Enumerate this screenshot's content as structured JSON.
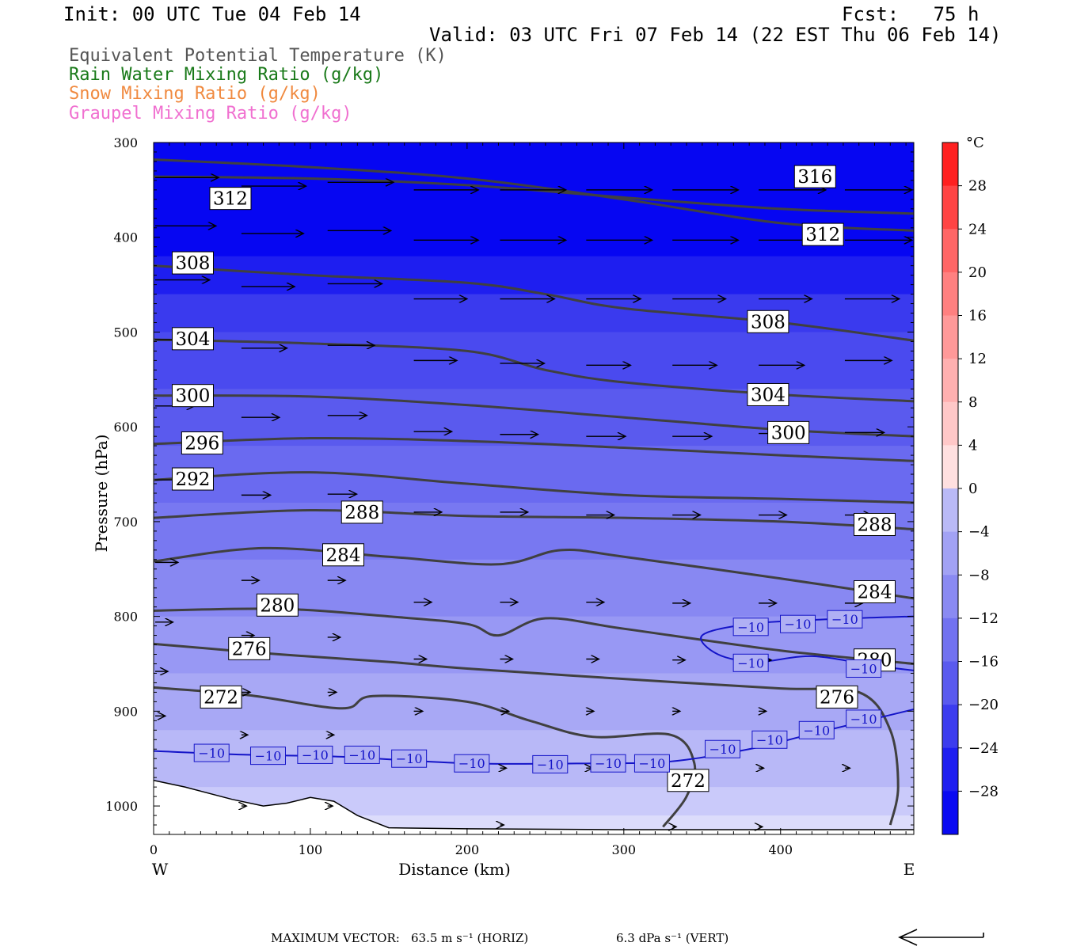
{
  "header": {
    "init": "Init: 00 UTC Tue 04 Feb 14",
    "fcst": "Fcst:   75 h",
    "valid": "Valid: 03 UTC Fri 07 Feb 14 (22 EST Thu 06 Feb 14)"
  },
  "legend": [
    {
      "label": "Equivalent Potential Temperature (K)",
      "color": "#555555"
    },
    {
      "label": "Rain Water Mixing Ratio (g/kg)",
      "color": "#1a7a1a"
    },
    {
      "label": "Snow Mixing Ratio (g/kg)",
      "color": "#f08a40"
    },
    {
      "label": "Graupel Mixing Ratio (g/kg)",
      "color": "#f070d0"
    }
  ],
  "footer": {
    "max_vector_label": "MAXIMUM VECTOR:",
    "horiz": "63.5 m s⁻¹ (HORIZ)",
    "vert": "6.3 dPa s⁻¹ (VERT)"
  },
  "chart_data": {
    "type": "heatmap",
    "xlabel": "Distance (km)",
    "ylabel": "Pressure (hPa)",
    "x_ticks": [
      0,
      100,
      200,
      300,
      400
    ],
    "y_ticks": [
      300,
      400,
      500,
      600,
      700,
      800,
      900,
      1000
    ],
    "xlim": [
      0,
      485
    ],
    "ylim": [
      1030,
      300
    ],
    "x_end_labels": {
      "left": "W",
      "right": "E"
    },
    "colorbar": {
      "unit": "°C",
      "ticks": [
        28,
        24,
        20,
        16,
        12,
        8,
        4,
        0,
        -4,
        -8,
        -12,
        -16,
        -20,
        -24,
        -28
      ],
      "range": [
        -32,
        32
      ],
      "colors_warm": [
        "#ff2020",
        "#ff4444",
        "#ff6666",
        "#ff8080",
        "#ff9999",
        "#ffb0b0",
        "#ffc8c8",
        "#ffe0e0"
      ],
      "colors_cold": [
        "#eaeafc",
        "#d2d2f8",
        "#babaf6",
        "#a2a2f4",
        "#8a8af2",
        "#7272f0",
        "#5a5aee",
        "#3c3cee",
        "#1e1ef0",
        "#0a0af2"
      ]
    },
    "theta_e_contours": [
      {
        "value": 316,
        "points": [
          [
            0,
            336
          ],
          [
            100,
            338
          ],
          [
            200,
            345
          ],
          [
            300,
            358
          ],
          [
            400,
            370
          ],
          [
            485,
            375
          ]
        ]
      },
      {
        "value": 312,
        "points": [
          [
            0,
            318
          ],
          [
            100,
            326
          ],
          [
            200,
            338
          ],
          [
            300,
            360
          ],
          [
            400,
            385
          ],
          [
            485,
            393
          ]
        ]
      },
      {
        "value": 308,
        "points": [
          [
            0,
            430
          ],
          [
            100,
            440
          ],
          [
            200,
            448
          ],
          [
            250,
            460
          ],
          [
            300,
            475
          ],
          [
            400,
            490
          ],
          [
            485,
            509
          ]
        ]
      },
      {
        "value": 304,
        "points": [
          [
            0,
            508
          ],
          [
            100,
            512
          ],
          [
            200,
            520
          ],
          [
            250,
            540
          ],
          [
            300,
            553
          ],
          [
            400,
            566
          ],
          [
            485,
            573
          ]
        ]
      },
      {
        "value": 300,
        "points": [
          [
            0,
            567
          ],
          [
            100,
            568
          ],
          [
            200,
            577
          ],
          [
            300,
            590
          ],
          [
            400,
            603
          ],
          [
            485,
            610
          ]
        ]
      },
      {
        "value": 296,
        "points": [
          [
            0,
            618
          ],
          [
            100,
            612
          ],
          [
            200,
            615
          ],
          [
            300,
            622
          ],
          [
            400,
            630
          ],
          [
            485,
            636
          ]
        ]
      },
      {
        "value": 292,
        "points": [
          [
            0,
            656
          ],
          [
            100,
            648
          ],
          [
            200,
            660
          ],
          [
            300,
            672
          ],
          [
            400,
            676
          ],
          [
            485,
            680
          ]
        ]
      },
      {
        "value": 288,
        "points": [
          [
            0,
            696
          ],
          [
            100,
            688
          ],
          [
            200,
            694
          ],
          [
            300,
            696
          ],
          [
            400,
            700
          ],
          [
            485,
            708
          ]
        ]
      },
      {
        "value": 284,
        "points": [
          [
            0,
            742
          ],
          [
            70,
            728
          ],
          [
            150,
            737
          ],
          [
            220,
            745
          ],
          [
            260,
            730
          ],
          [
            300,
            737
          ],
          [
            400,
            760
          ],
          [
            485,
            781
          ]
        ]
      },
      {
        "value": 280,
        "points": [
          [
            0,
            794
          ],
          [
            80,
            792
          ],
          [
            150,
            800
          ],
          [
            200,
            808
          ],
          [
            220,
            820
          ],
          [
            250,
            802
          ],
          [
            300,
            813
          ],
          [
            400,
            836
          ],
          [
            485,
            850
          ]
        ]
      },
      {
        "value": 276,
        "points": [
          [
            0,
            829
          ],
          [
            80,
            840
          ],
          [
            150,
            848
          ],
          [
            200,
            855
          ],
          [
            300,
            866
          ],
          [
            400,
            876
          ],
          [
            450,
            880
          ],
          [
            470,
            920
          ],
          [
            475,
            980
          ],
          [
            470,
            1020
          ]
        ]
      },
      {
        "value": 272,
        "points": [
          [
            0,
            875
          ],
          [
            60,
            883
          ],
          [
            120,
            897
          ],
          [
            140,
            884
          ],
          [
            200,
            890
          ],
          [
            240,
            910
          ],
          [
            280,
            927
          ],
          [
            330,
            925
          ],
          [
            345,
            955
          ],
          [
            340,
            990
          ],
          [
            325,
            1022
          ]
        ]
      }
    ],
    "temp_minus10_contours": [
      {
        "points": [
          [
            0,
            942
          ],
          [
            60,
            946
          ],
          [
            120,
            948
          ],
          [
            200,
            955
          ],
          [
            280,
            955
          ],
          [
            330,
            953
          ],
          [
            380,
            940
          ],
          [
            420,
            924
          ],
          [
            485,
            898
          ]
        ]
      },
      {
        "points": [
          [
            485,
            800
          ],
          [
            430,
            803
          ],
          [
            380,
            808
          ],
          [
            350,
            820
          ],
          [
            360,
            840
          ],
          [
            385,
            848
          ],
          [
            420,
            842
          ],
          [
            460,
            852
          ],
          [
            485,
            857
          ]
        ]
      }
    ],
    "contour_labels": [
      {
        "text": "316",
        "x": 422,
        "y": 336
      },
      {
        "text": "312",
        "x": 49,
        "y": 359
      },
      {
        "text": "312",
        "x": 427,
        "y": 397
      },
      {
        "text": "308",
        "x": 25,
        "y": 427
      },
      {
        "text": "308",
        "x": 392,
        "y": 489
      },
      {
        "text": "304",
        "x": 25,
        "y": 507
      },
      {
        "text": "304",
        "x": 392,
        "y": 566
      },
      {
        "text": "300",
        "x": 25,
        "y": 567
      },
      {
        "text": "300",
        "x": 405,
        "y": 606
      },
      {
        "text": "296",
        "x": 31,
        "y": 617
      },
      {
        "text": "292",
        "x": 25,
        "y": 655
      },
      {
        "text": "288",
        "x": 133,
        "y": 690
      },
      {
        "text": "288",
        "x": 460,
        "y": 703
      },
      {
        "text": "284",
        "x": 121,
        "y": 735
      },
      {
        "text": "284",
        "x": 460,
        "y": 774
      },
      {
        "text": "280",
        "x": 79,
        "y": 788
      },
      {
        "text": "280",
        "x": 460,
        "y": 846
      },
      {
        "text": "276",
        "x": 61,
        "y": 834
      },
      {
        "text": "276",
        "x": 436,
        "y": 885
      },
      {
        "text": "272",
        "x": 43,
        "y": 885
      },
      {
        "text": "272",
        "x": 341,
        "y": 973
      }
    ],
    "minus10_labels": [
      {
        "text": "-10",
        "x": 37,
        "y": 944
      },
      {
        "text": "-10",
        "x": 73,
        "y": 947
      },
      {
        "text": "-10",
        "x": 103,
        "y": 946
      },
      {
        "text": "-10",
        "x": 133,
        "y": 946
      },
      {
        "text": "-10",
        "x": 163,
        "y": 950
      },
      {
        "text": "-10",
        "x": 203,
        "y": 955
      },
      {
        "text": "-10",
        "x": 253,
        "y": 956
      },
      {
        "text": "-10",
        "x": 290,
        "y": 955
      },
      {
        "text": "-10",
        "x": 318,
        "y": 955
      },
      {
        "text": "-10",
        "x": 363,
        "y": 940
      },
      {
        "text": "-10",
        "x": 393,
        "y": 930
      },
      {
        "text": "-10",
        "x": 423,
        "y": 920
      },
      {
        "text": "-10",
        "x": 453,
        "y": 908
      },
      {
        "text": "-10",
        "x": 381,
        "y": 811
      },
      {
        "text": "-10",
        "x": 411,
        "y": 808
      },
      {
        "text": "-10",
        "x": 441,
        "y": 803
      },
      {
        "text": "-10",
        "x": 381,
        "y": 849
      },
      {
        "text": "-10",
        "x": 453,
        "y": 855
      }
    ],
    "wind_vectors": [
      {
        "x": 0,
        "y": 337,
        "u": 50
      },
      {
        "x": 55,
        "y": 346,
        "u": 51
      },
      {
        "x": 110,
        "y": 342,
        "u": 52
      },
      {
        "x": 165,
        "y": 350,
        "u": 51
      },
      {
        "x": 220,
        "y": 350,
        "u": 52
      },
      {
        "x": 275,
        "y": 350,
        "u": 52
      },
      {
        "x": 330,
        "y": 350,
        "u": 52
      },
      {
        "x": 385,
        "y": 350,
        "u": 53
      },
      {
        "x": 440,
        "y": 350,
        "u": 53
      },
      {
        "x": 0,
        "y": 388,
        "u": 48
      },
      {
        "x": 55,
        "y": 396,
        "u": 49
      },
      {
        "x": 110,
        "y": 393,
        "u": 50
      },
      {
        "x": 165,
        "y": 403,
        "u": 51
      },
      {
        "x": 220,
        "y": 403,
        "u": 52
      },
      {
        "x": 275,
        "y": 403,
        "u": 52
      },
      {
        "x": 330,
        "y": 403,
        "u": 52
      },
      {
        "x": 385,
        "y": 403,
        "u": 53
      },
      {
        "x": 440,
        "y": 403,
        "u": 53
      },
      {
        "x": 0,
        "y": 445,
        "u": 43
      },
      {
        "x": 55,
        "y": 452,
        "u": 42
      },
      {
        "x": 110,
        "y": 449,
        "u": 43
      },
      {
        "x": 165,
        "y": 465,
        "u": 42
      },
      {
        "x": 220,
        "y": 465,
        "u": 43
      },
      {
        "x": 275,
        "y": 465,
        "u": 43
      },
      {
        "x": 330,
        "y": 465,
        "u": 42
      },
      {
        "x": 385,
        "y": 465,
        "u": 42
      },
      {
        "x": 440,
        "y": 465,
        "u": 43
      },
      {
        "x": 0,
        "y": 508,
        "u": 38
      },
      {
        "x": 55,
        "y": 517,
        "u": 36
      },
      {
        "x": 110,
        "y": 514,
        "u": 37
      },
      {
        "x": 165,
        "y": 530,
        "u": 34
      },
      {
        "x": 220,
        "y": 533,
        "u": 35
      },
      {
        "x": 275,
        "y": 535,
        "u": 35
      },
      {
        "x": 330,
        "y": 535,
        "u": 35
      },
      {
        "x": 385,
        "y": 535,
        "u": 36
      },
      {
        "x": 440,
        "y": 530,
        "u": 37
      },
      {
        "x": 0,
        "y": 578,
        "u": 31
      },
      {
        "x": 55,
        "y": 590,
        "u": 30
      },
      {
        "x": 110,
        "y": 588,
        "u": 31
      },
      {
        "x": 165,
        "y": 605,
        "u": 30
      },
      {
        "x": 220,
        "y": 608,
        "u": 30
      },
      {
        "x": 275,
        "y": 610,
        "u": 31
      },
      {
        "x": 330,
        "y": 610,
        "u": 31
      },
      {
        "x": 385,
        "y": 607,
        "u": 32
      },
      {
        "x": 440,
        "y": 606,
        "u": 31
      },
      {
        "x": 0,
        "y": 656,
        "u": 24
      },
      {
        "x": 55,
        "y": 672,
        "u": 23
      },
      {
        "x": 110,
        "y": 671,
        "u": 23
      },
      {
        "x": 165,
        "y": 690,
        "u": 22
      },
      {
        "x": 220,
        "y": 690,
        "u": 22
      },
      {
        "x": 275,
        "y": 693,
        "u": 22
      },
      {
        "x": 330,
        "y": 693,
        "u": 22
      },
      {
        "x": 385,
        "y": 693,
        "u": 22
      },
      {
        "x": 440,
        "y": 693,
        "u": 21
      },
      {
        "x": 0,
        "y": 743,
        "u": 18
      },
      {
        "x": 55,
        "y": 762,
        "u": 14
      },
      {
        "x": 110,
        "y": 762,
        "u": 14
      },
      {
        "x": 165,
        "y": 785,
        "u": 14
      },
      {
        "x": 220,
        "y": 785,
        "u": 14
      },
      {
        "x": 275,
        "y": 785,
        "u": 14
      },
      {
        "x": 330,
        "y": 786,
        "u": 14
      },
      {
        "x": 385,
        "y": 786,
        "u": 14
      },
      {
        "x": 440,
        "y": 786,
        "u": 14
      },
      {
        "x": 0,
        "y": 806,
        "u": 14
      },
      {
        "x": 55,
        "y": 820,
        "u": 10
      },
      {
        "x": 110,
        "y": 822,
        "u": 10
      },
      {
        "x": 165,
        "y": 845,
        "u": 10
      },
      {
        "x": 220,
        "y": 845,
        "u": 10
      },
      {
        "x": 275,
        "y": 845,
        "u": 10
      },
      {
        "x": 330,
        "y": 846,
        "u": 10
      },
      {
        "x": 385,
        "y": 846,
        "u": 10
      },
      {
        "x": 0,
        "y": 858,
        "u": 10
      },
      {
        "x": 55,
        "y": 880,
        "u": 7
      },
      {
        "x": 110,
        "y": 880,
        "u": 7
      },
      {
        "x": 165,
        "y": 900,
        "u": 7
      },
      {
        "x": 220,
        "y": 900,
        "u": 7
      },
      {
        "x": 275,
        "y": 900,
        "u": 6
      },
      {
        "x": 330,
        "y": 900,
        "u": 6
      },
      {
        "x": 385,
        "y": 900,
        "u": 6
      },
      {
        "x": 0,
        "y": 905,
        "u": 8
      },
      {
        "x": 55,
        "y": 925,
        "u": 5
      },
      {
        "x": 110,
        "y": 925,
        "u": 5
      },
      {
        "x": 220,
        "y": 960,
        "u": 5
      },
      {
        "x": 275,
        "y": 960,
        "u": 5
      },
      {
        "x": 385,
        "y": 960,
        "u": 4
      },
      {
        "x": 440,
        "y": 960,
        "u": 4
      },
      {
        "x": 55,
        "y": 1000,
        "u": 4
      },
      {
        "x": 110,
        "y": 1000,
        "u": 4
      },
      {
        "x": 220,
        "y": 1020,
        "u": 3
      },
      {
        "x": 330,
        "y": 1022,
        "u": 3
      },
      {
        "x": 385,
        "y": 1022,
        "u": 3
      }
    ],
    "terrain": [
      [
        0,
        973
      ],
      [
        20,
        980
      ],
      [
        50,
        993
      ],
      [
        70,
        1000
      ],
      [
        85,
        997
      ],
      [
        100,
        991
      ],
      [
        115,
        995
      ],
      [
        130,
        1010
      ],
      [
        150,
        1023
      ],
      [
        200,
        1024
      ],
      [
        300,
        1025
      ],
      [
        485,
        1025
      ]
    ]
  }
}
